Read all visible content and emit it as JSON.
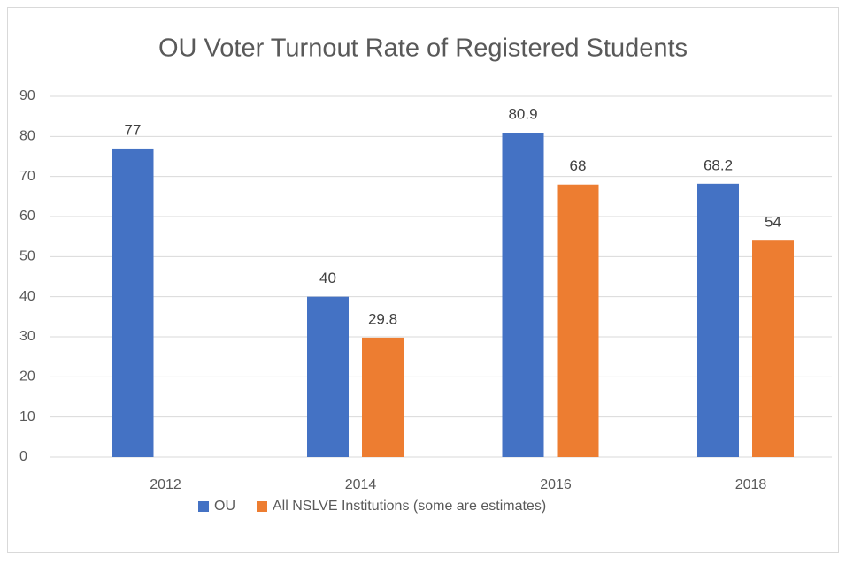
{
  "chart_data": {
    "type": "bar",
    "title": "OU Voter Turnout Rate of Registered Students",
    "categories": [
      "2012",
      "2014",
      "2016",
      "2018"
    ],
    "series": [
      {
        "name": "OU",
        "color": "#4472c4",
        "values": [
          77,
          40,
          80.9,
          68.2
        ]
      },
      {
        "name": "All NSLVE Institutions (some are estimates)",
        "color": "#ed7d31",
        "values": [
          null,
          29.8,
          68,
          54
        ]
      }
    ],
    "ylim": [
      0,
      90
    ],
    "yticks": [
      0,
      10,
      20,
      30,
      40,
      50,
      60,
      70,
      80,
      90
    ],
    "grid": true,
    "legend": "bottom"
  }
}
